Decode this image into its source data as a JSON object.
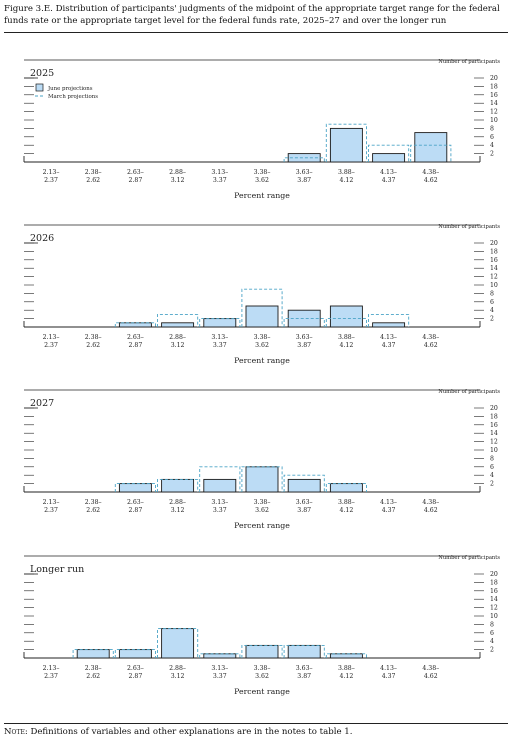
{
  "figure": {
    "title": "Figure 3.E. Distribution of participants' judgments of the midpoint of the appropriate target range for the federal funds rate or the appropriate target level for the federal funds rate, 2025–27 and over the longer run",
    "note_label": "Note:",
    "note_text": "Definitions of variables and other explanations are in the notes to table 1."
  },
  "colors": {
    "june_fill": "#bcdcf5",
    "bar_stroke": "#1a1a1a",
    "march_line": "#4aa3c6",
    "axis": "#222222"
  },
  "chart_data": [
    {
      "type": "bar",
      "title": "2025",
      "xlabel": "Percent range",
      "ylabel": "Number of participants",
      "ylim": [
        0,
        20
      ],
      "yticks": [
        2,
        4,
        6,
        8,
        10,
        12,
        14,
        16,
        18,
        20
      ],
      "legend": {
        "position": "top-left",
        "entries": [
          "June projections",
          "March projections"
        ]
      },
      "categories": [
        "2.13–2.37",
        "2.38–2.62",
        "2.63–2.87",
        "2.88–3.12",
        "3.13–3.37",
        "3.38–3.62",
        "3.63–3.87",
        "3.88–4.12",
        "4.13–4.37",
        "4.38–4.62"
      ],
      "category_lines": [
        [
          "2.13–",
          "2.37"
        ],
        [
          "2.38–",
          "2.62"
        ],
        [
          "2.63–",
          "2.87"
        ],
        [
          "2.88–",
          "3.12"
        ],
        [
          "3.13–",
          "3.37"
        ],
        [
          "3.38–",
          "3.62"
        ],
        [
          "3.63–",
          "3.87"
        ],
        [
          "3.88–",
          "4.12"
        ],
        [
          "4.13–",
          "4.37"
        ],
        [
          "4.38–",
          "4.62"
        ]
      ],
      "series": [
        {
          "name": "June projections",
          "style": "bar",
          "values": [
            0,
            0,
            0,
            0,
            0,
            0,
            2,
            8,
            2,
            7
          ]
        },
        {
          "name": "March projections",
          "style": "dashed-outline",
          "values": [
            0,
            0,
            0,
            0,
            0,
            0,
            1,
            9,
            4,
            4
          ]
        }
      ]
    },
    {
      "type": "bar",
      "title": "2026",
      "xlabel": "Percent range",
      "ylabel": "Number of participants",
      "ylim": [
        0,
        20
      ],
      "yticks": [
        2,
        4,
        6,
        8,
        10,
        12,
        14,
        16,
        18,
        20
      ],
      "categories": [
        "2.13–2.37",
        "2.38–2.62",
        "2.63–2.87",
        "2.88–3.12",
        "3.13–3.37",
        "3.38–3.62",
        "3.63–3.87",
        "3.88–4.12",
        "4.13–4.37",
        "4.38–4.62"
      ],
      "category_lines": [
        [
          "2.13–",
          "2.37"
        ],
        [
          "2.38–",
          "2.62"
        ],
        [
          "2.63–",
          "2.87"
        ],
        [
          "2.88–",
          "3.12"
        ],
        [
          "3.13–",
          "3.37"
        ],
        [
          "3.38–",
          "3.62"
        ],
        [
          "3.63–",
          "3.87"
        ],
        [
          "3.88–",
          "4.12"
        ],
        [
          "4.13–",
          "4.37"
        ],
        [
          "4.38–",
          "4.62"
        ]
      ],
      "series": [
        {
          "name": "June projections",
          "style": "bar",
          "values": [
            0,
            0,
            1,
            1,
            2,
            5,
            4,
            5,
            1,
            0
          ]
        },
        {
          "name": "March projections",
          "style": "dashed-outline",
          "values": [
            0,
            0,
            1,
            3,
            2,
            9,
            2,
            2,
            3,
            0
          ]
        }
      ]
    },
    {
      "type": "bar",
      "title": "2027",
      "xlabel": "Percent range",
      "ylabel": "Number of participants",
      "ylim": [
        0,
        20
      ],
      "yticks": [
        2,
        4,
        6,
        8,
        10,
        12,
        14,
        16,
        18,
        20
      ],
      "categories": [
        "2.13–2.37",
        "2.38–2.62",
        "2.63–2.87",
        "2.88–3.12",
        "3.13–3.37",
        "3.38–3.62",
        "3.63–3.87",
        "3.88–4.12",
        "4.13–4.37",
        "4.38–4.62"
      ],
      "category_lines": [
        [
          "2.13–",
          "2.37"
        ],
        [
          "2.38–",
          "2.62"
        ],
        [
          "2.63–",
          "2.87"
        ],
        [
          "2.88–",
          "3.12"
        ],
        [
          "3.13–",
          "3.37"
        ],
        [
          "3.38–",
          "3.62"
        ],
        [
          "3.63–",
          "3.87"
        ],
        [
          "3.88–",
          "4.12"
        ],
        [
          "4.13–",
          "4.37"
        ],
        [
          "4.38–",
          "4.62"
        ]
      ],
      "series": [
        {
          "name": "June projections",
          "style": "bar",
          "values": [
            0,
            0,
            2,
            3,
            3,
            6,
            3,
            2,
            0,
            0
          ]
        },
        {
          "name": "March projections",
          "style": "dashed-outline",
          "values": [
            0,
            0,
            2,
            3,
            6,
            6,
            4,
            2,
            0,
            0
          ]
        }
      ]
    },
    {
      "type": "bar",
      "title": "Longer run",
      "xlabel": "Percent range",
      "ylabel": "Number of participants",
      "ylim": [
        0,
        20
      ],
      "yticks": [
        2,
        4,
        6,
        8,
        10,
        12,
        14,
        16,
        18,
        20
      ],
      "categories": [
        "2.13–2.37",
        "2.38–2.62",
        "2.63–2.87",
        "2.88–3.12",
        "3.13–3.37",
        "3.38–3.62",
        "3.63–3.87",
        "3.88–4.12",
        "4.13–4.37",
        "4.38–4.62"
      ],
      "category_lines": [
        [
          "2.13–",
          "2.37"
        ],
        [
          "2.38–",
          "2.62"
        ],
        [
          "2.63–",
          "2.87"
        ],
        [
          "2.88–",
          "3.12"
        ],
        [
          "3.13–",
          "3.37"
        ],
        [
          "3.38–",
          "3.62"
        ],
        [
          "3.63–",
          "3.87"
        ],
        [
          "3.88–",
          "4.12"
        ],
        [
          "4.13–",
          "4.37"
        ],
        [
          "4.38–",
          "4.62"
        ]
      ],
      "series": [
        {
          "name": "June projections",
          "style": "bar",
          "values": [
            0,
            2,
            2,
            7,
            1,
            3,
            3,
            1,
            0,
            0
          ]
        },
        {
          "name": "March projections",
          "style": "dashed-outline",
          "values": [
            0,
            2,
            2,
            7,
            1,
            3,
            3,
            1,
            0,
            0
          ]
        }
      ]
    }
  ]
}
